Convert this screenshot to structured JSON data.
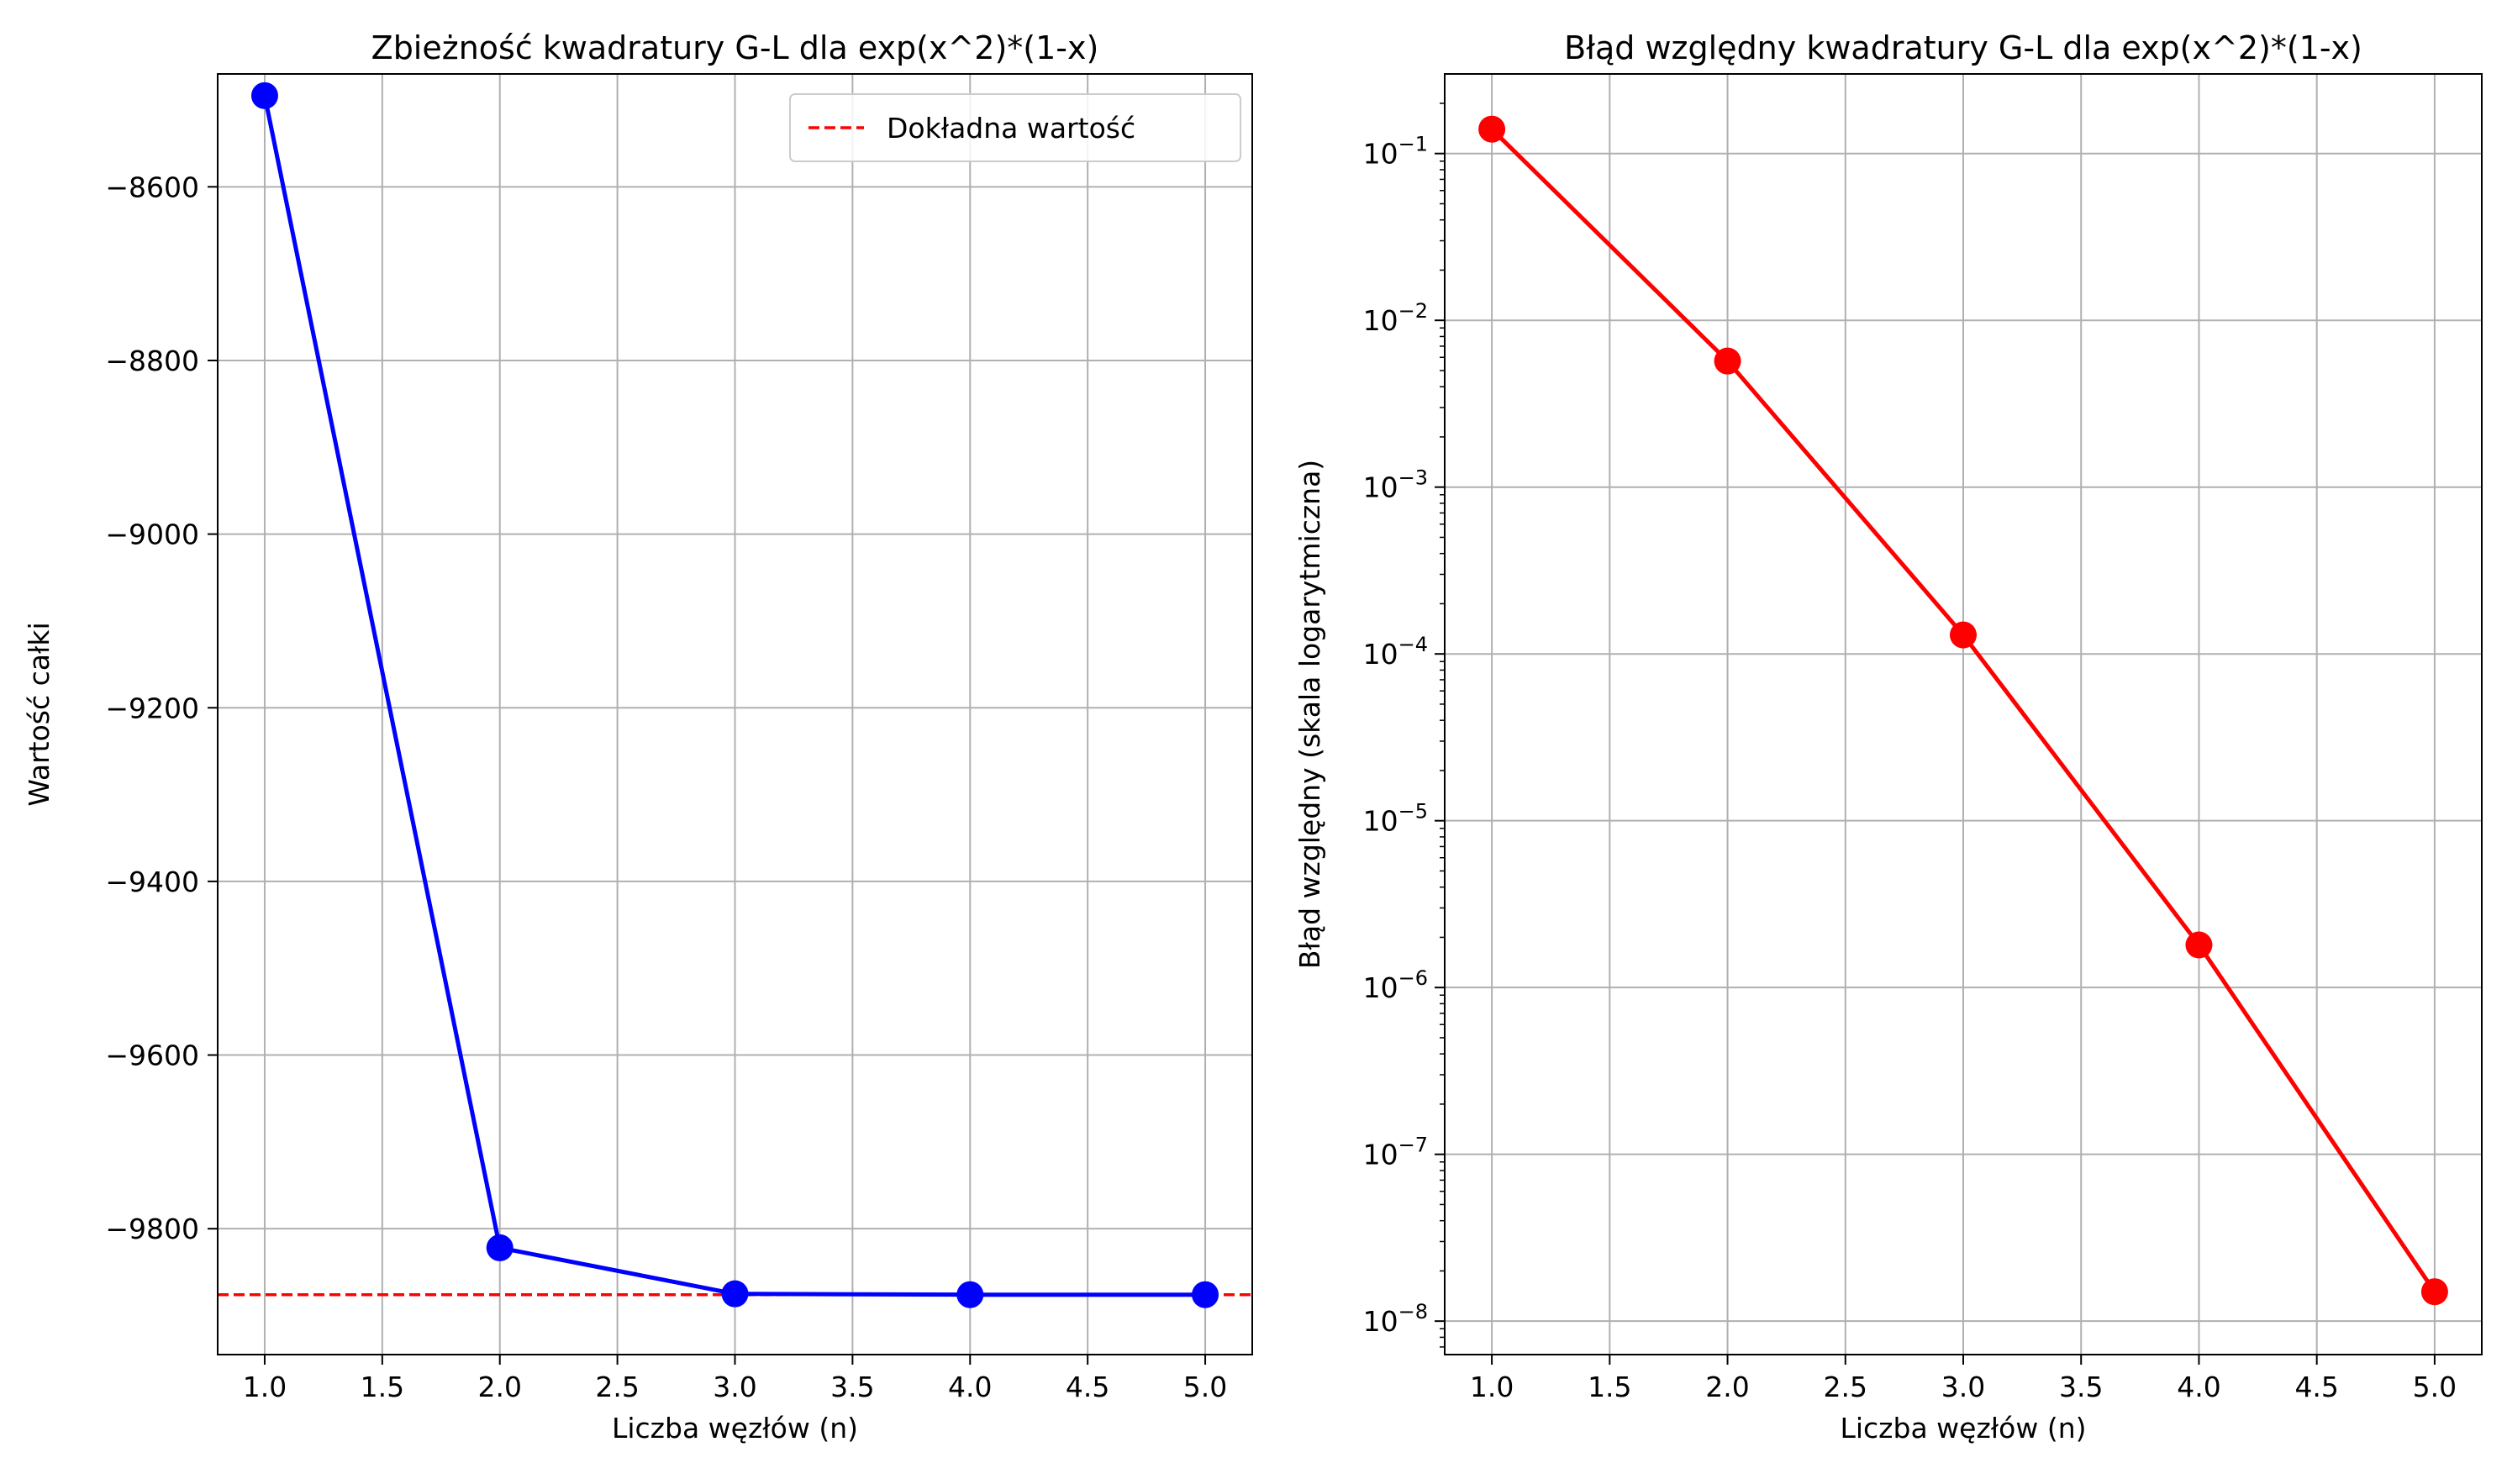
{
  "chart_data": [
    {
      "type": "line",
      "title": "Zbieżność kwadratury G-L dla exp(x^2)*(1-x)",
      "xlabel": "Liczba węzłów (n)",
      "ylabel": "Wartość całki",
      "xlim": [
        0.8,
        5.2
      ],
      "ylim": [
        -9945,
        -8470
      ],
      "grid": true,
      "x_ticks": [
        "1.0",
        "1.5",
        "2.0",
        "2.5",
        "3.0",
        "3.5",
        "4.0",
        "4.5",
        "5.0"
      ],
      "y_ticks": [
        "-8600",
        "-8800",
        "-9000",
        "-9200",
        "-9400",
        "-9600",
        "-9800"
      ],
      "series": [
        {
          "color": "#0000ff",
          "marker": "circle",
          "x": [
            1,
            2,
            3,
            4,
            5
          ],
          "y": [
            -8495,
            -9822,
            -9875,
            -9876,
            -9876
          ]
        }
      ],
      "reference_line": {
        "name": "Dokładna wartość",
        "y": -9876,
        "color": "#ff0000",
        "style": "dashed"
      },
      "legend_position": "top-right"
    },
    {
      "type": "line",
      "title": "Błąd względny kwadratury G-L dla exp(x^2)*(1-x)",
      "xlabel": "Liczba węzłów (n)",
      "ylabel": "Błąd względny (skala logarytmiczna)",
      "yscale": "log",
      "xlim": [
        0.8,
        5.2
      ],
      "ylim": [
        6.3e-09,
        0.3
      ],
      "grid": true,
      "x_ticks": [
        "1.0",
        "1.5",
        "2.0",
        "2.5",
        "3.0",
        "3.5",
        "4.0",
        "4.5",
        "5.0"
      ],
      "y_ticks": [
        {
          "base": "10",
          "exp": "−1"
        },
        {
          "base": "10",
          "exp": "−2"
        },
        {
          "base": "10",
          "exp": "−3"
        },
        {
          "base": "10",
          "exp": "−4"
        },
        {
          "base": "10",
          "exp": "−5"
        },
        {
          "base": "10",
          "exp": "−6"
        },
        {
          "base": "10",
          "exp": "−7"
        },
        {
          "base": "10",
          "exp": "−8"
        }
      ],
      "series": [
        {
          "color": "#ff0000",
          "marker": "circle",
          "x": [
            1,
            2,
            3,
            4,
            5
          ],
          "y": [
            0.14,
            0.0057,
            0.00013,
            1.8e-06,
            1.5e-08
          ]
        }
      ]
    }
  ]
}
